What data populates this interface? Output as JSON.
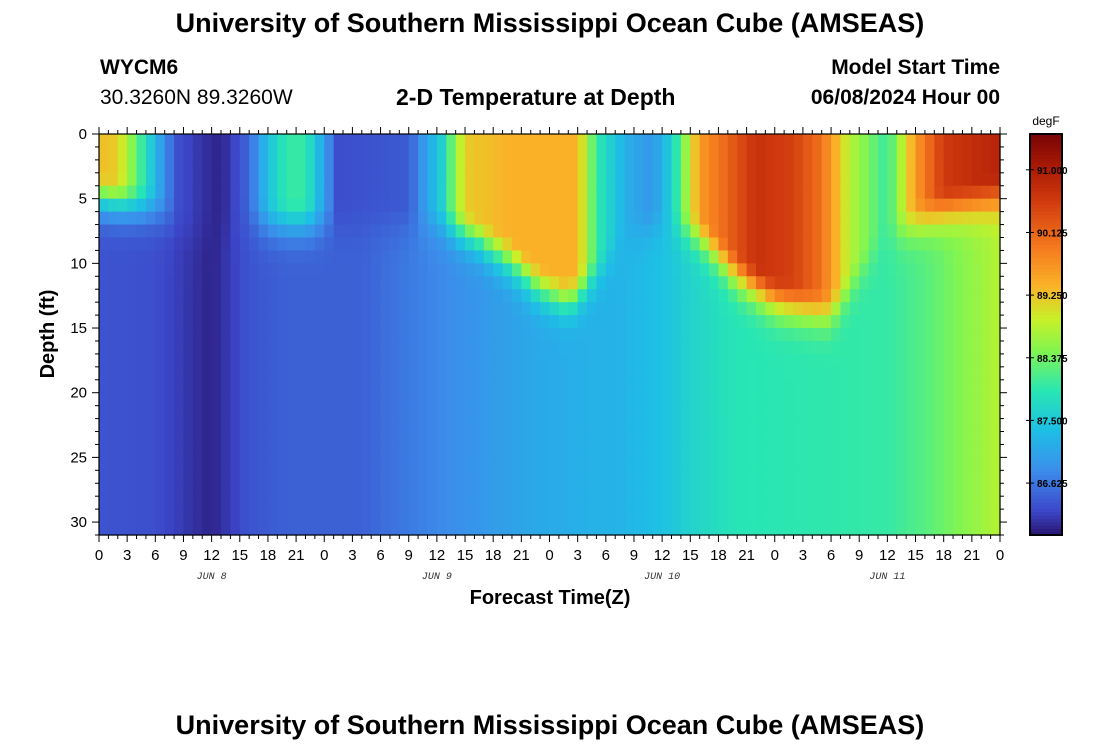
{
  "header": {
    "title": "University of Southern Mississippi Ocean Cube (AMSEAS)",
    "station": "WYCM6",
    "coords": "30.3260N  89.3260W",
    "plot_title": "2-D Temperature at Depth",
    "model_start_label": "Model Start Time",
    "model_start_value": "06/08/2024 Hour 00"
  },
  "footer": {
    "title": "University of Southern Mississippi Ocean Cube (AMSEAS)"
  },
  "chart_data": {
    "type": "heatmap",
    "title": "2-D Temperature at Depth",
    "xlabel": "Forecast Time(Z)",
    "ylabel": "Depth (ft)",
    "x_hours": [
      0,
      96
    ],
    "x_tick_labels": [
      "0",
      "3",
      "6",
      "9",
      "12",
      "15",
      "18",
      "21",
      "0",
      "3",
      "6",
      "9",
      "12",
      "15",
      "18",
      "21",
      "0",
      "3",
      "6",
      "9",
      "12",
      "15",
      "18",
      "21",
      "0",
      "3",
      "6",
      "9",
      "12",
      "15",
      "18",
      "21",
      "0"
    ],
    "day_labels": [
      {
        "label": "JUN 8",
        "hour": 12
      },
      {
        "label": "JUN 9",
        "hour": 36
      },
      {
        "label": "JUN 10",
        "hour": 60
      },
      {
        "label": "JUN 11",
        "hour": 84
      }
    ],
    "ylim": [
      0,
      31
    ],
    "y_ticks": [
      0,
      5,
      10,
      15,
      20,
      25,
      30
    ],
    "colorbar": {
      "unit": "degF",
      "min": 85.9,
      "max": 91.5,
      "tick_values": [
        91.0,
        90.125,
        89.25,
        88.375,
        87.5,
        86.625
      ],
      "tick_labels": [
        "91.000",
        "90.125",
        "89.250",
        "88.375",
        "87.500",
        "86.625"
      ]
    },
    "surface_temp_degF": [
      {
        "h": 0,
        "v": 89.3
      },
      {
        "h": 2,
        "v": 89.2
      },
      {
        "h": 5,
        "v": 87.8
      },
      {
        "h": 7,
        "v": 86.8
      },
      {
        "h": 8.5,
        "v": 86.3
      },
      {
        "h": 11,
        "v": 86.1
      },
      {
        "h": 13,
        "v": 86.0
      },
      {
        "h": 16,
        "v": 86.5
      },
      {
        "h": 18,
        "v": 87.4
      },
      {
        "h": 20,
        "v": 88.0
      },
      {
        "h": 22,
        "v": 88.0
      },
      {
        "h": 24,
        "v": 87.0
      },
      {
        "h": 25.5,
        "v": 86.3
      },
      {
        "h": 33,
        "v": 86.4
      },
      {
        "h": 36.5,
        "v": 87.6
      },
      {
        "h": 39,
        "v": 89.2
      },
      {
        "h": 44,
        "v": 89.4
      },
      {
        "h": 51,
        "v": 89.4
      },
      {
        "h": 53,
        "v": 88.0
      },
      {
        "h": 56,
        "v": 87.2
      },
      {
        "h": 59,
        "v": 86.9
      },
      {
        "h": 61,
        "v": 87.6
      },
      {
        "h": 64,
        "v": 89.6
      },
      {
        "h": 70,
        "v": 90.7
      },
      {
        "h": 74,
        "v": 90.5
      },
      {
        "h": 77,
        "v": 90.0
      },
      {
        "h": 80,
        "v": 88.8
      },
      {
        "h": 84,
        "v": 88.0
      },
      {
        "h": 87,
        "v": 89.6
      },
      {
        "h": 90,
        "v": 90.6
      },
      {
        "h": 96,
        "v": 90.9
      }
    ],
    "bottom_temp_degF": [
      {
        "h": 0,
        "v": 86.35
      },
      {
        "h": 6,
        "v": 86.3
      },
      {
        "h": 10,
        "v": 86.1
      },
      {
        "h": 12,
        "v": 86.0
      },
      {
        "h": 16,
        "v": 86.35
      },
      {
        "h": 20,
        "v": 86.45
      },
      {
        "h": 28,
        "v": 86.45
      },
      {
        "h": 34,
        "v": 86.7
      },
      {
        "h": 40,
        "v": 86.9
      },
      {
        "h": 46,
        "v": 87.1
      },
      {
        "h": 52,
        "v": 87.2
      },
      {
        "h": 56,
        "v": 87.25
      },
      {
        "h": 60,
        "v": 87.4
      },
      {
        "h": 64,
        "v": 87.7
      },
      {
        "h": 68,
        "v": 87.9
      },
      {
        "h": 76,
        "v": 87.95
      },
      {
        "h": 84,
        "v": 88.0
      },
      {
        "h": 88,
        "v": 88.2
      },
      {
        "h": 92,
        "v": 88.5
      },
      {
        "h": 96,
        "v": 88.8
      }
    ],
    "mixed_layer_depth_ft": [
      {
        "h": 0,
        "d": 3
      },
      {
        "h": 6,
        "d": 4
      },
      {
        "h": 10,
        "d": 6
      },
      {
        "h": 16,
        "d": 5
      },
      {
        "h": 24,
        "d": 5
      },
      {
        "h": 36,
        "d": 5
      },
      {
        "h": 40,
        "d": 6
      },
      {
        "h": 44,
        "d": 8
      },
      {
        "h": 47,
        "d": 10
      },
      {
        "h": 50,
        "d": 11
      },
      {
        "h": 53,
        "d": 9
      },
      {
        "h": 56,
        "d": 6
      },
      {
        "h": 60,
        "d": 5
      },
      {
        "h": 64,
        "d": 6
      },
      {
        "h": 68,
        "d": 9
      },
      {
        "h": 72,
        "d": 11
      },
      {
        "h": 78,
        "d": 12
      },
      {
        "h": 84,
        "d": 6
      },
      {
        "h": 90,
        "d": 4
      },
      {
        "h": 96,
        "d": 3
      }
    ],
    "notes": "Cold column (~85.9 degF) near JUN 8 13Z; warm surface layers (>89 degF) JUN 9 15Z–JUN 10 3Z and JUN 10 15Z–JUN 11 12Z; water column warms from ~86.3 to ~88.8 degF at depth over the forecast."
  }
}
